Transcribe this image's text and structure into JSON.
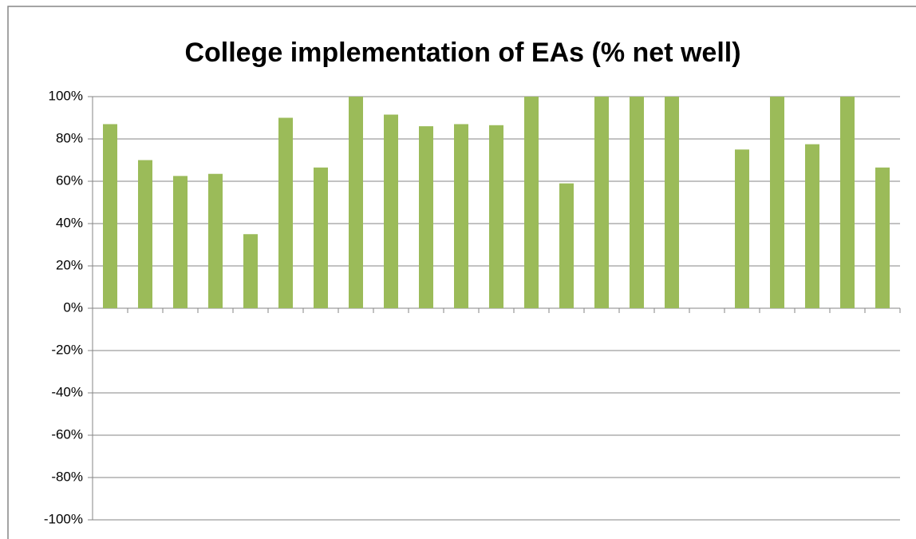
{
  "chart_data": {
    "type": "bar",
    "title": "College implementation of EAs (% net well)",
    "categories": [
      null,
      null,
      null,
      null,
      null,
      null,
      null,
      null,
      null,
      null,
      null,
      null,
      null,
      null,
      null,
      null,
      null,
      null,
      null,
      null,
      null,
      null,
      null
    ],
    "values": [
      87,
      70,
      62.5,
      63.5,
      35,
      90,
      66.5,
      100,
      91.5,
      86,
      87,
      86.5,
      100,
      59,
      100,
      100,
      100,
      null,
      75,
      100,
      77.5,
      100,
      66.5
    ],
    "color": "#9bbb59",
    "ylim": [
      -100,
      100
    ],
    "yticks": [
      {
        "value": -100,
        "label": "-100%"
      },
      {
        "value": -80,
        "label": "-80%"
      },
      {
        "value": -60,
        "label": "-60%"
      },
      {
        "value": -40,
        "label": "-40%"
      },
      {
        "value": -20,
        "label": "-20%"
      },
      {
        "value": 0,
        "label": "0%"
      },
      {
        "value": 20,
        "label": "20%"
      },
      {
        "value": 40,
        "label": "40%"
      },
      {
        "value": 60,
        "label": "60%"
      },
      {
        "value": 80,
        "label": "80%"
      },
      {
        "value": 100,
        "label": "100%"
      }
    ],
    "grid": true
  }
}
